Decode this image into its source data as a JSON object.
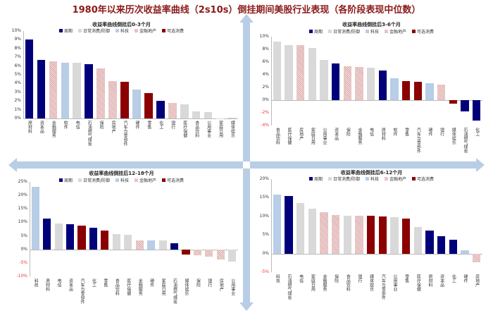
{
  "title": "1980年以来历次收益率曲线（2s10s）倒挂期间美股行业表现（各阶段表现中位数）",
  "legend": [
    {
      "key": "cyc",
      "label": "周期",
      "color": "#00007a"
    },
    {
      "key": "def",
      "label": "日常消费/防御",
      "color": "#d9d9d9"
    },
    {
      "key": "tech",
      "label": "科技",
      "color": "#b8cde6"
    },
    {
      "key": "fin",
      "label": "金融地产",
      "color": "#e8c4c4"
    },
    {
      "key": "disc",
      "label": "可选消费",
      "color": "#8b0000"
    }
  ],
  "chart_data": [
    {
      "type": "bar",
      "title": "收益率曲线倒挂后0-3个月",
      "ylim": [
        0,
        10
      ],
      "yticks": [
        "0%",
        "1%",
        "2%",
        "3%",
        "4%",
        "5%",
        "6%",
        "7%",
        "8%",
        "9%",
        "10%"
      ],
      "categories": [
        "原材料",
        "资本品",
        "金融服务",
        "软件",
        "电信",
        "石油燃气煤炭",
        "保险",
        "房地产",
        "汽车与零部件",
        "硬件",
        "零售",
        "化工",
        "银行",
        "医疗保健",
        "食品饮料",
        "公用事业",
        "家庭日用",
        "媒体娱乐"
      ],
      "groups": [
        "cyc",
        "cyc",
        "fin",
        "tech",
        "def",
        "cyc",
        "fin",
        "fin",
        "disc",
        "tech",
        "disc",
        "cyc",
        "fin",
        "def",
        "def",
        "def",
        "def",
        "fin"
      ],
      "values": [
        9.0,
        6.7,
        6.5,
        6.4,
        6.4,
        6.2,
        5.7,
        4.3,
        4.2,
        3.3,
        2.9,
        2.0,
        1.8,
        1.6,
        0.8,
        0.7,
        0.0,
        0.1
      ]
    },
    {
      "type": "bar",
      "title": "收益率曲线倒挂后3-6个月",
      "ylim": [
        -4,
        10
      ],
      "yticks": [
        "-4%",
        "-2%",
        "0%",
        "2%",
        "4%",
        "6%",
        "8%",
        "10%"
      ],
      "categories": [
        "食品饮料",
        "医疗保健",
        "房地产",
        "家庭日用",
        "公用事业",
        "资本品",
        "保险",
        "金融服务",
        "电信",
        "原材料",
        "软件",
        "零售",
        "汽车与零部件",
        "硬件",
        "银行",
        "媒体娱乐",
        "石油燃气煤炭",
        "化工"
      ],
      "groups": [
        "def",
        "def",
        "fin",
        "def",
        "def",
        "cyc",
        "fin",
        "fin",
        "def",
        "cyc",
        "tech",
        "disc",
        "disc",
        "tech",
        "fin",
        "disc",
        "cyc",
        "cyc"
      ],
      "values": [
        9.2,
        8.7,
        8.7,
        8.2,
        6.3,
        5.8,
        5.3,
        5.2,
        5.1,
        4.7,
        3.4,
        3.0,
        2.9,
        2.7,
        2.5,
        -0.5,
        -1.8,
        -3.2
      ]
    },
    {
      "type": "bar",
      "title": "收益率曲线倒挂后12-18个月",
      "ylim": [
        -10,
        25
      ],
      "yticks": [
        "-10%",
        "-5%",
        "0%",
        "5%",
        "10%",
        "15%",
        "20%",
        "25%"
      ],
      "categories": [
        "科技",
        "原材料",
        "电信",
        "资本品",
        "汽车与零部件",
        "化工",
        "零售",
        "食品饮料",
        "医疗保健",
        "金融服务",
        "硬件",
        "家庭日用",
        "石油燃气煤炭",
        "媒体娱乐",
        "保险",
        "银行",
        "房地产",
        "公用事业"
      ],
      "groups": [
        "tech",
        "cyc",
        "def",
        "cyc",
        "disc",
        "cyc",
        "disc",
        "def",
        "def",
        "fin",
        "tech",
        "def",
        "cyc",
        "disc",
        "fin",
        "fin",
        "fin",
        "def"
      ],
      "values": [
        23.3,
        11.3,
        9.5,
        9.2,
        8.8,
        8.0,
        6.9,
        5.6,
        5.5,
        3.4,
        3.3,
        3.2,
        2.3,
        -1.8,
        -2.2,
        -2.6,
        -3.8,
        -4.4
      ]
    },
    {
      "type": "bar",
      "title": "收益率曲线倒挂后6-12个月",
      "ylim": [
        -5,
        20
      ],
      "yticks": [
        "-5%",
        "0%",
        "5%",
        "10%",
        "15%",
        "20%"
      ],
      "categories": [
        "科技",
        "石油燃气煤炭",
        "电信",
        "家庭日用",
        "金融服务",
        "保险",
        "食品饮料",
        "银行",
        "媒体娱乐",
        "汽车与零部件",
        "公用事业",
        "零售",
        "医疗保健",
        "原材料",
        "资本品",
        "化工",
        "硬件",
        "房地产"
      ],
      "groups": [
        "tech",
        "cyc",
        "def",
        "def",
        "fin",
        "fin",
        "def",
        "fin",
        "disc",
        "disc",
        "def",
        "disc",
        "def",
        "cyc",
        "cyc",
        "cyc",
        "tech",
        "fin"
      ],
      "values": [
        15.9,
        15.4,
        13.6,
        12.0,
        11.1,
        10.3,
        10.1,
        10.1,
        10.1,
        10.0,
        9.8,
        9.3,
        7.1,
        6.2,
        4.6,
        3.8,
        0.8,
        -2.4
      ]
    }
  ]
}
